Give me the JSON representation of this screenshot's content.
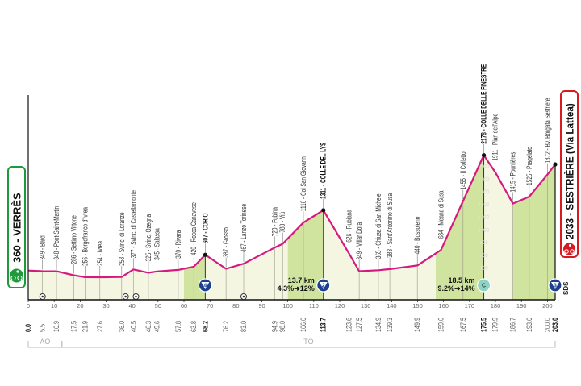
{
  "chart_data": {
    "type": "area",
    "xlabel": "",
    "ylabel": "",
    "xlim": [
      0,
      203
    ],
    "grid": true,
    "colors": {
      "profile": "#d6197f",
      "fill": "#f4f6e2",
      "climb": "#c9df93",
      "start": "#1f9a3a",
      "finish": "#d71a20",
      "badge": "#1d3f8f",
      "cima_coppi": "#8fd3c4"
    },
    "start": {
      "label": "360 - VERRÈS",
      "km": 0,
      "elev": 360
    },
    "finish": {
      "label": "2033 - SESTRIÈRE (Via Lattea)",
      "km": 203,
      "elev": 2033
    },
    "points": [
      {
        "km": 0.0,
        "km_label": "0.0",
        "elev": 360,
        "name": "",
        "bold": true
      },
      {
        "km": 5.5,
        "km_label": "5.5",
        "elev": 349,
        "name": "349 - Bard"
      },
      {
        "km": 10.9,
        "km_label": "10.9",
        "elev": 348,
        "name": "348 - Pont-Saint-Martin"
      },
      {
        "km": 17.5,
        "km_label": "17.5",
        "elev": 286,
        "name": "286 - Settimo Vittone"
      },
      {
        "km": 21.9,
        "km_label": "21.9",
        "elev": 256,
        "name": "256 - Borgofranco d'Ivrea"
      },
      {
        "km": 27.6,
        "km_label": "27.6",
        "elev": 254,
        "name": "254 - Ivrea"
      },
      {
        "km": 36.0,
        "km_label": "36.0",
        "elev": 258,
        "name": "258 - Svinc. di Loranzè"
      },
      {
        "km": 40.5,
        "km_label": "40.5",
        "elev": 377,
        "name": "377 - Svinc. di Castellamonte"
      },
      {
        "km": 46.3,
        "km_label": "46.3",
        "elev": 325,
        "name": "325 - Svinc. Ozegna"
      },
      {
        "km": 49.6,
        "km_label": "49.6",
        "elev": 345,
        "name": "345 - Salassa"
      },
      {
        "km": 57.8,
        "km_label": "57.8",
        "elev": 370,
        "name": "370 - Rivara"
      },
      {
        "km": 63.8,
        "km_label": "63.8",
        "elev": 420,
        "name": "420 - Rocca Canavese"
      },
      {
        "km": 68.2,
        "km_label": "68.2",
        "elev": 607,
        "name": "607 - CORIO",
        "bold": true
      },
      {
        "km": 76.2,
        "km_label": "76.2",
        "elev": 387,
        "name": "387 - Grosso"
      },
      {
        "km": 83.0,
        "km_label": "83.0",
        "elev": 467,
        "name": "467 - Lanzo Torinese"
      },
      {
        "km": 94.9,
        "km_label": "94.9",
        "elev": 720,
        "name": "720 - Fubina"
      },
      {
        "km": 98.0,
        "km_label": "98.0",
        "elev": 780,
        "name": "780 - Viù"
      },
      {
        "km": 106.0,
        "km_label": "106.0",
        "elev": 1116,
        "name": "1116 - Col San Giovanni"
      },
      {
        "km": 113.7,
        "km_label": "113.7",
        "elev": 1311,
        "name": "1311 - COLLE DEL LYS",
        "bold": true
      },
      {
        "km": 123.6,
        "km_label": "123.6",
        "elev": 626,
        "name": "626 - Rubiana"
      },
      {
        "km": 127.5,
        "km_label": "127.5",
        "elev": 349,
        "name": "349 - Villar Dora"
      },
      {
        "km": 134.9,
        "km_label": "134.9",
        "elev": 365,
        "name": "365 - Chiusa di San Michele"
      },
      {
        "km": 139.3,
        "km_label": "139.3",
        "elev": 383,
        "name": "383 - Sant'Antonino di Susa"
      },
      {
        "km": 149.9,
        "km_label": "149.9",
        "elev": 440,
        "name": "440 - Bussoleno"
      },
      {
        "km": 159.0,
        "km_label": "159.0",
        "elev": 684,
        "name": "684 - Meana di Susa"
      },
      {
        "km": 167.5,
        "km_label": "167.5",
        "elev": 1455,
        "name": "1455 - Il Colletto"
      },
      {
        "km": 175.5,
        "km_label": "175.5",
        "elev": 2178,
        "name": "2178 - COLLE DELLE FINESTRE",
        "bold": true
      },
      {
        "km": 179.9,
        "km_label": "179.9",
        "elev": 1911,
        "name": "1911 - Pian dell'Alpe"
      },
      {
        "km": 186.7,
        "km_label": "186.7",
        "elev": 1415,
        "name": "1415 - Pourrières"
      },
      {
        "km": 193.0,
        "km_label": "193.0",
        "elev": 1525,
        "name": "1525 - Pragelato"
      },
      {
        "km": 200.0,
        "km_label": "200.0",
        "elev": 1872,
        "name": "1872 - Bv. Borgata Sestriere"
      },
      {
        "km": 203.0,
        "km_label": "203.0",
        "elev": 2033,
        "name": "",
        "bold": true
      }
    ],
    "x_ticks": [
      0,
      10,
      20,
      30,
      40,
      50,
      60,
      70,
      80,
      90,
      100,
      110,
      120,
      130,
      140,
      150,
      160,
      170,
      180,
      190,
      200
    ],
    "y_ticks": [
      400,
      600,
      800,
      1000,
      1200,
      1400,
      1600,
      1800,
      2000
    ],
    "climbs": [
      {
        "from": 60,
        "to": 68.2,
        "category": "4"
      },
      {
        "from": 100,
        "to": 113.7,
        "category": "2",
        "length": "13.7 km",
        "gradient": "4.3%➜12%"
      },
      {
        "from": 157,
        "to": 175.5,
        "category": "C",
        "length": "18.5 km",
        "gradient": "9.2%➜14%"
      },
      {
        "from": 186.7,
        "to": 203,
        "category": "3"
      }
    ],
    "sprints_km": [
      5.5,
      37.5,
      41.5,
      83.0
    ],
    "provinces": [
      {
        "label": "AO",
        "from": 0,
        "to": 13
      },
      {
        "label": "TO",
        "from": 13,
        "to": 203
      }
    ],
    "sds_label": "SDS"
  }
}
